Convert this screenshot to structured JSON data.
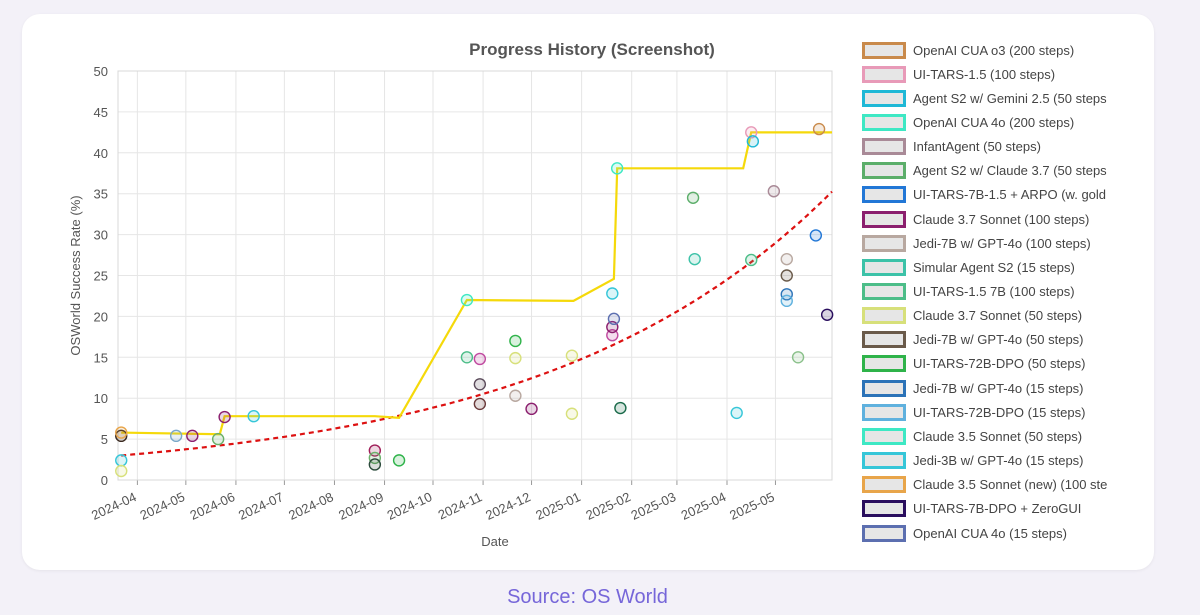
{
  "source_label": "Source: OS World",
  "colors": {
    "background": "#f3f1f8",
    "source_text": "#7666d9",
    "sota_line": "#f5d90a",
    "trend_line": "#dd1111",
    "grid": "#e6e6e6"
  },
  "chart_data": {
    "type": "scatter",
    "title": "Progress History (Screenshot)",
    "xlabel": "Date",
    "ylabel": "OSWorld Success Rate (%)",
    "x_range": [
      "2024-03-20",
      "2025-06-05"
    ],
    "ylim": [
      0,
      50
    ],
    "y_ticks": [
      0,
      5,
      10,
      15,
      20,
      25,
      30,
      35,
      40,
      45,
      50
    ],
    "x_ticks": [
      "2024-04",
      "2024-05",
      "2024-06",
      "2024-07",
      "2024-08",
      "2024-09",
      "2024-10",
      "2024-11",
      "2024-12",
      "2025-01",
      "2025-02",
      "2025-03",
      "2025-04",
      "2025-05"
    ],
    "grid": true,
    "legend_position": "right",
    "sota_line": [
      {
        "x": "2024-03-22",
        "y": 5.8
      },
      {
        "x": "2024-05-22",
        "y": 5.6
      },
      {
        "x": "2024-05-25",
        "y": 7.8
      },
      {
        "x": "2024-08-26",
        "y": 7.8
      },
      {
        "x": "2024-09-10",
        "y": 7.6
      },
      {
        "x": "2024-10-22",
        "y": 22.0
      },
      {
        "x": "2024-12-27",
        "y": 21.9
      },
      {
        "x": "2025-01-21",
        "y": 24.6
      },
      {
        "x": "2025-01-23",
        "y": 38.1
      },
      {
        "x": "2025-04-11",
        "y": 38.1
      },
      {
        "x": "2025-04-16",
        "y": 42.5
      },
      {
        "x": "2025-05-28",
        "y": 42.5
      },
      {
        "x": "2025-06-05",
        "y": 42.5
      }
    ],
    "trend_line": {
      "x0": "2024-03-22",
      "y0": 3.0,
      "rate_per_day": 0.0056
    },
    "series": [
      {
        "name": "OpenAI CUA o3 (200 steps)",
        "color": "#c98a4b",
        "points": [
          {
            "x": "2025-05-28",
            "y": 42.9
          }
        ]
      },
      {
        "name": "UI-TARS-1.5 (100 steps)",
        "color": "#e89ab8",
        "points": [
          {
            "x": "2025-04-16",
            "y": 42.5
          }
        ]
      },
      {
        "name": "Agent S2 w/ Gemini 2.5 (50 steps",
        "color": "#1fb8d6",
        "points": [
          {
            "x": "2025-04-17",
            "y": 41.4
          }
        ]
      },
      {
        "name": "OpenAI CUA 4o (200 steps)",
        "color": "#3ee8c4",
        "points": [
          {
            "x": "2025-01-23",
            "y": 38.1
          }
        ]
      },
      {
        "name": "InfantAgent (50 steps)",
        "color": "#a98a97",
        "points": [
          {
            "x": "2025-04-30",
            "y": 35.3
          }
        ]
      },
      {
        "name": "Agent S2 w/ Claude 3.7 (50 steps",
        "color": "#5cae6a",
        "points": [
          {
            "x": "2025-03-11",
            "y": 34.5
          }
        ]
      },
      {
        "name": "UI-TARS-7B-1.5 + ARPO (w. gold",
        "color": "#2277d6",
        "points": [
          {
            "x": "2025-05-26",
            "y": 29.9
          }
        ]
      },
      {
        "name": "Claude 3.7 Sonnet (100 steps)",
        "color": "#8b1f6e",
        "points": [
          {
            "x": "2025-01-20",
            "y": 18.7
          }
        ]
      },
      {
        "name": "Jedi-7B w/ GPT-4o (100 steps)",
        "color": "#b8a8a0",
        "points": [
          {
            "x": "2025-05-08",
            "y": 27.0
          }
        ]
      },
      {
        "name": "Simular Agent S2 (15 steps)",
        "color": "#3cc2a8",
        "points": [
          {
            "x": "2025-03-12",
            "y": 27.0
          }
        ]
      },
      {
        "name": "UI-TARS-1.5 7B (100 steps)",
        "color": "#4cbd88",
        "points": [
          {
            "x": "2025-04-16",
            "y": 26.9
          }
        ]
      },
      {
        "name": "Claude 3.7 Sonnet (50 steps)",
        "color": "#d7e07a",
        "points": [
          {
            "x": "2024-12-26",
            "y": 15.2
          }
        ]
      },
      {
        "name": "Jedi-7B w/ GPT-4o (50 steps)",
        "color": "#6a5a4a",
        "points": [
          {
            "x": "2025-05-08",
            "y": 25.0
          }
        ]
      },
      {
        "name": "UI-TARS-72B-DPO (50 steps)",
        "color": "#2fb34a",
        "points": [
          {
            "x": "2024-11-21",
            "y": 17.0
          }
        ]
      },
      {
        "name": "Jedi-7B w/ GPT-4o (15 steps)",
        "color": "#2c73b8",
        "points": [
          {
            "x": "2025-05-08",
            "y": 22.7
          }
        ]
      },
      {
        "name": "UI-TARS-72B-DPO (15 steps)",
        "color": "#5fb1de",
        "points": [
          {
            "x": "2025-05-08",
            "y": 21.9
          }
        ]
      },
      {
        "name": "Claude 3.5 Sonnet (50 steps)",
        "color": "#3ee8c4",
        "points": [
          {
            "x": "2024-10-22",
            "y": 22.0
          }
        ]
      },
      {
        "name": "Jedi-3B w/ GPT-4o (15 steps)",
        "color": "#36c6d8",
        "points": [
          {
            "x": "2025-01-20",
            "y": 22.8
          }
        ]
      },
      {
        "name": "Claude 3.5 Sonnet (new) (100 ste",
        "color": "#e8a54a",
        "points": [
          {
            "x": "2024-03-22",
            "y": 5.8
          }
        ]
      },
      {
        "name": "UI-TARS-7B-DPO + ZeroGUI",
        "color": "#2a0e5e",
        "points": [
          {
            "x": "2025-06-02",
            "y": 20.2
          }
        ]
      },
      {
        "name": "OpenAI CUA 4o (15 steps)",
        "color": "#5c6fb0",
        "points": [
          {
            "x": "2025-01-21",
            "y": 19.7
          }
        ]
      }
    ],
    "other_points": [
      {
        "x": "2024-03-22",
        "y": 5.4,
        "color": "#3b2a20"
      },
      {
        "x": "2024-03-22",
        "y": 2.4,
        "color": "#36c6d8"
      },
      {
        "x": "2024-03-22",
        "y": 1.1,
        "color": "#d7e07a"
      },
      {
        "x": "2024-04-25",
        "y": 5.4,
        "color": "#7aa8c8"
      },
      {
        "x": "2024-05-05",
        "y": 5.4,
        "color": "#8b1f6e"
      },
      {
        "x": "2024-05-21",
        "y": 5.0,
        "color": "#6ab06a"
      },
      {
        "x": "2024-05-25",
        "y": 7.7,
        "color": "#8b1f6e"
      },
      {
        "x": "2024-06-12",
        "y": 7.8,
        "color": "#36c6d8"
      },
      {
        "x": "2024-08-26",
        "y": 3.6,
        "color": "#a0205a"
      },
      {
        "x": "2024-08-26",
        "y": 2.7,
        "color": "#6ab06a"
      },
      {
        "x": "2024-08-26",
        "y": 1.9,
        "color": "#2a4a3a"
      },
      {
        "x": "2024-09-10",
        "y": 2.4,
        "color": "#2fb34a"
      },
      {
        "x": "2024-10-22",
        "y": 15.0,
        "color": "#4cbd88"
      },
      {
        "x": "2024-10-30",
        "y": 14.8,
        "color": "#c04aa0"
      },
      {
        "x": "2024-10-30",
        "y": 11.7,
        "color": "#5a4a5a"
      },
      {
        "x": "2024-10-30",
        "y": 9.3,
        "color": "#6a3a3a"
      },
      {
        "x": "2024-11-21",
        "y": 14.9,
        "color": "#d7e07a"
      },
      {
        "x": "2024-11-21",
        "y": 10.3,
        "color": "#b8a8a0"
      },
      {
        "x": "2024-12-01",
        "y": 8.7,
        "color": "#8b1f6e"
      },
      {
        "x": "2024-12-26",
        "y": 8.1,
        "color": "#d7e07a"
      },
      {
        "x": "2025-01-20",
        "y": 17.7,
        "color": "#c04aa0"
      },
      {
        "x": "2025-01-25",
        "y": 8.8,
        "color": "#1a6a4a"
      },
      {
        "x": "2025-04-07",
        "y": 8.2,
        "color": "#36c6d8"
      },
      {
        "x": "2025-05-15",
        "y": 15.0,
        "color": "#8ac08a"
      }
    ]
  }
}
